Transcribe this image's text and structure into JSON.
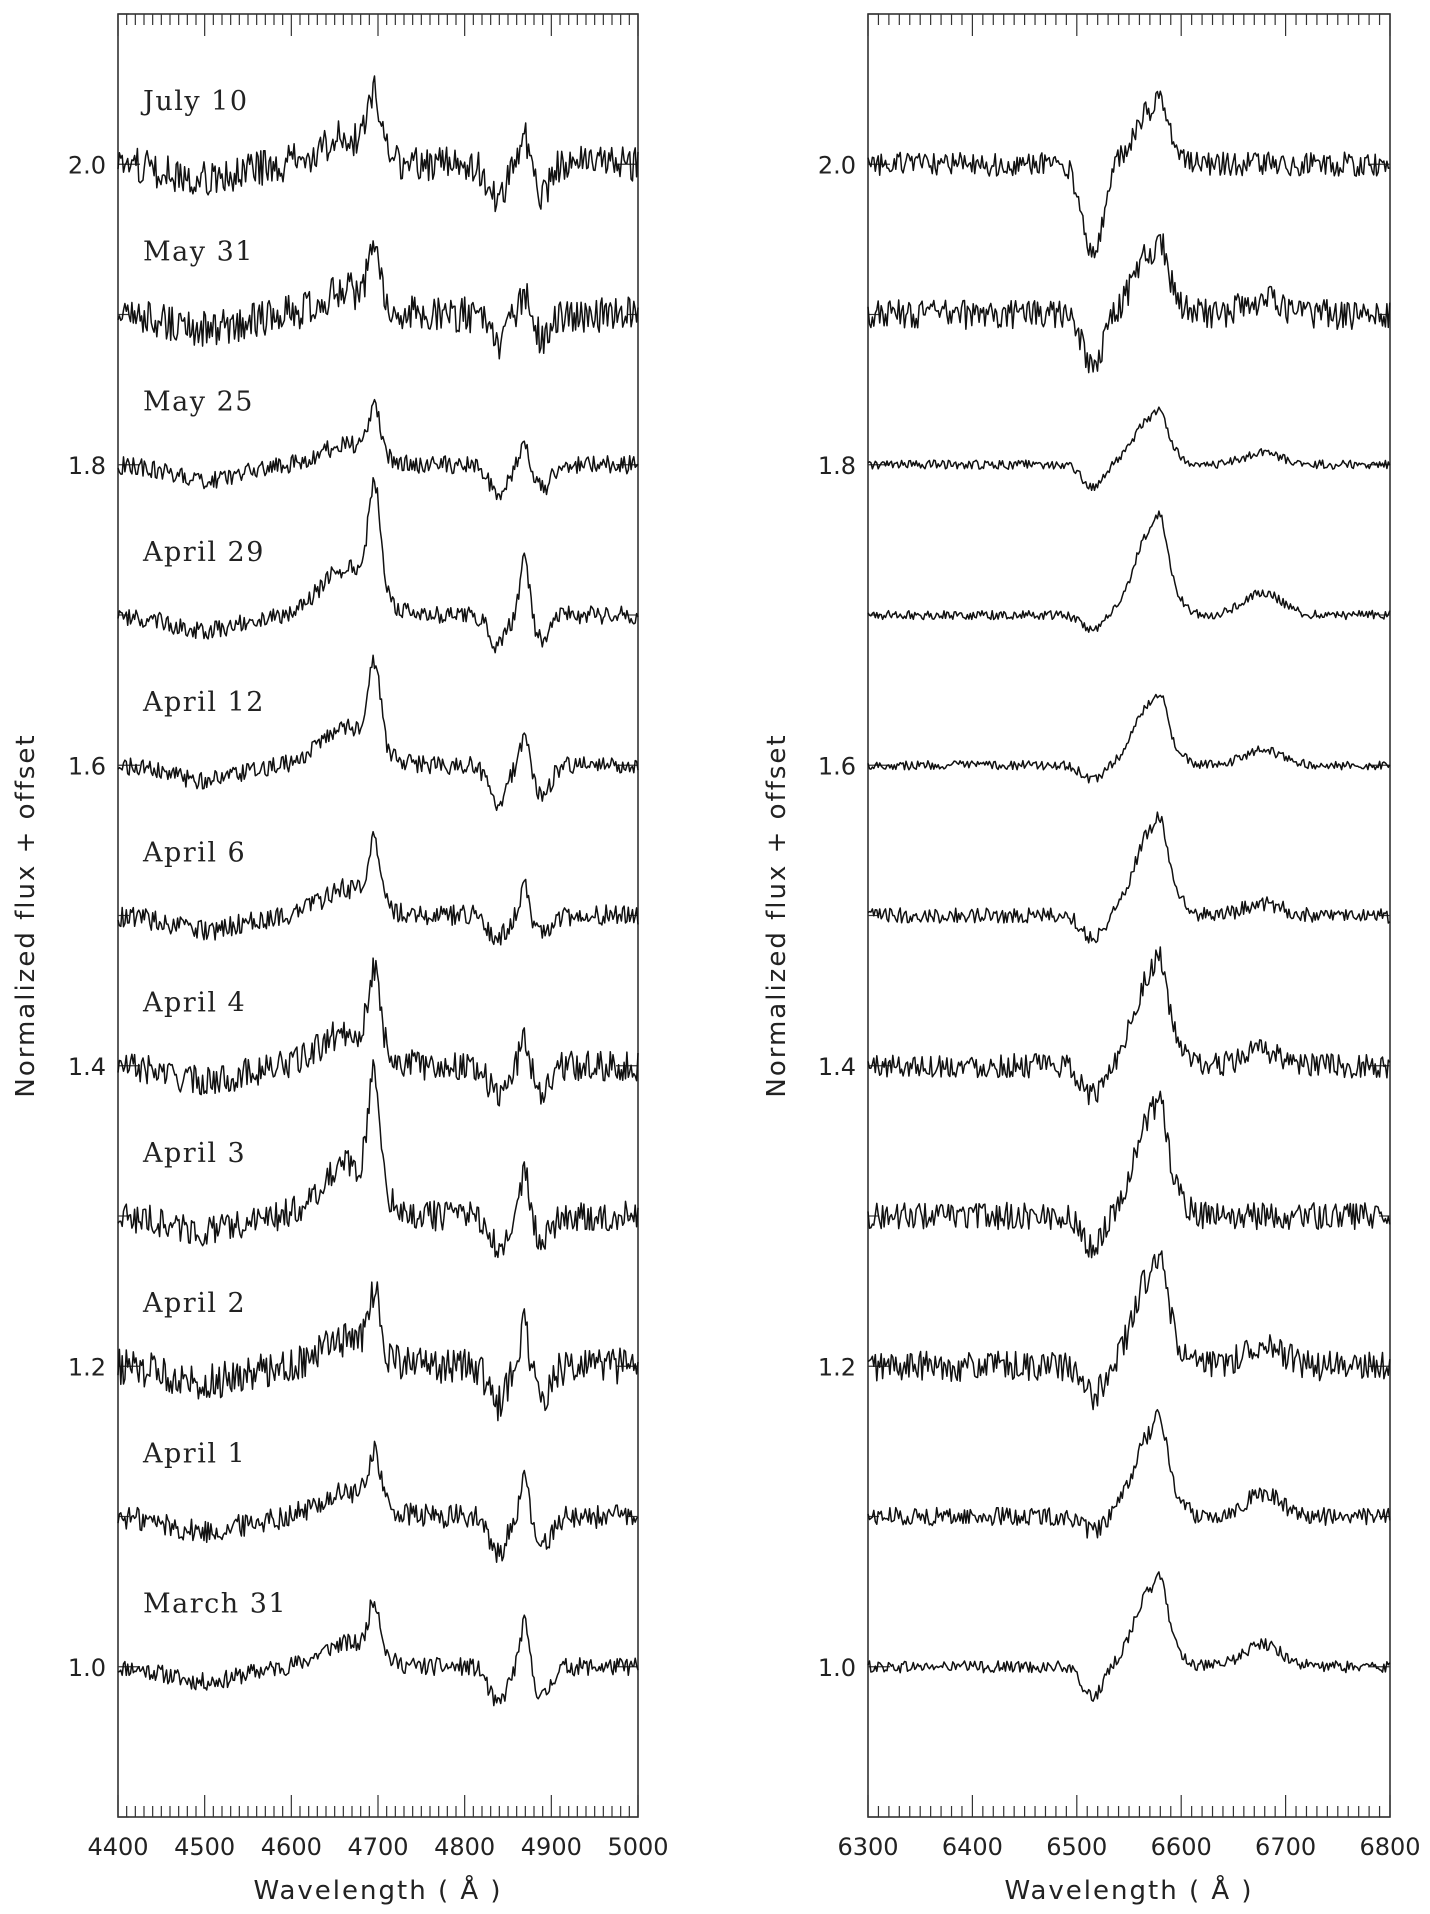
{
  "chart_data": [
    {
      "type": "line",
      "panel": "left",
      "xlabel": "Wavelength ( Å )",
      "ylabel": "Normalized flux + offset",
      "xlim": [
        4400,
        5000
      ],
      "ylim": [
        0.9,
        2.1
      ],
      "xticks": [
        "4400",
        "4500",
        "4600",
        "4700",
        "4800",
        "4900",
        "5000"
      ],
      "yticks": [
        "1.0",
        "1.2",
        "1.4",
        "1.6",
        "1.8",
        "2.0"
      ],
      "grid": false,
      "features": [
        {
          "x": 4686,
          "width": 18
        },
        {
          "x": 4861,
          "width": 10
        }
      ],
      "series": [
        {
          "name": "March 31",
          "offset": 1.0,
          "peak": 0.035,
          "hbeta": 0.03,
          "abs": 0.025,
          "noise": 0.006
        },
        {
          "name": "April 1",
          "offset": 1.1,
          "peak": 0.035,
          "hbeta": 0.025,
          "abs": 0.025,
          "noise": 0.008
        },
        {
          "name": "April 2",
          "offset": 1.2,
          "peak": 0.04,
          "hbeta": 0.03,
          "abs": 0.025,
          "noise": 0.012
        },
        {
          "name": "April 3",
          "offset": 1.3,
          "peak": 0.075,
          "hbeta": 0.03,
          "abs": 0.02,
          "noise": 0.01
        },
        {
          "name": "April 4",
          "offset": 1.4,
          "peak": 0.05,
          "hbeta": 0.02,
          "abs": 0.02,
          "noise": 0.01
        },
        {
          "name": "April 6",
          "offset": 1.5,
          "peak": 0.04,
          "hbeta": 0.02,
          "abs": 0.015,
          "noise": 0.007
        },
        {
          "name": "April 12",
          "offset": 1.6,
          "peak": 0.055,
          "hbeta": 0.02,
          "abs": 0.025,
          "noise": 0.006
        },
        {
          "name": "April 29",
          "offset": 1.7,
          "peak": 0.07,
          "hbeta": 0.04,
          "abs": 0.02,
          "noise": 0.006
        },
        {
          "name": "May 25",
          "offset": 1.8,
          "peak": 0.03,
          "hbeta": 0.015,
          "abs": 0.02,
          "noise": 0.006
        },
        {
          "name": "May 31",
          "offset": 1.9,
          "peak": 0.035,
          "hbeta": 0.015,
          "abs": 0.02,
          "noise": 0.012
        },
        {
          "name": "July 10",
          "offset": 2.0,
          "peak": 0.04,
          "hbeta": 0.02,
          "abs": 0.025,
          "noise": 0.012
        }
      ]
    },
    {
      "type": "line",
      "panel": "right",
      "xlabel": "Wavelength ( Å )",
      "ylabel": "Normalized flux + offset",
      "xlim": [
        6300,
        6800
      ],
      "ylim": [
        0.9,
        2.1
      ],
      "xticks": [
        "6300",
        "6400",
        "6500",
        "6600",
        "6700",
        "6800"
      ],
      "yticks": [
        "1.0",
        "1.2",
        "1.4",
        "1.6",
        "1.8",
        "2.0"
      ],
      "grid": false,
      "features": [
        {
          "x": 6563,
          "width": 22
        },
        {
          "x": 6678,
          "width": 20
        }
      ],
      "series": [
        {
          "name": "March 31",
          "offset": 1.0,
          "peak": 0.05,
          "abs": 0.02,
          "heI": 0.015,
          "noise": 0.004
        },
        {
          "name": "April 1",
          "offset": 1.1,
          "peak": 0.055,
          "abs": 0.01,
          "heI": 0.015,
          "noise": 0.006
        },
        {
          "name": "April 2",
          "offset": 1.2,
          "peak": 0.06,
          "abs": 0.02,
          "heI": 0.015,
          "noise": 0.01
        },
        {
          "name": "April 3",
          "offset": 1.3,
          "peak": 0.065,
          "abs": 0.02,
          "heI": 0.0,
          "noise": 0.009
        },
        {
          "name": "April 4",
          "offset": 1.4,
          "peak": 0.06,
          "abs": 0.02,
          "heI": 0.01,
          "noise": 0.008
        },
        {
          "name": "April 6",
          "offset": 1.5,
          "peak": 0.055,
          "abs": 0.015,
          "heI": 0.008,
          "noise": 0.005
        },
        {
          "name": "April 12",
          "offset": 1.6,
          "peak": 0.04,
          "abs": 0.01,
          "heI": 0.01,
          "noise": 0.003
        },
        {
          "name": "April 29",
          "offset": 1.7,
          "peak": 0.055,
          "abs": 0.01,
          "heI": 0.015,
          "noise": 0.003
        },
        {
          "name": "May 25",
          "offset": 1.8,
          "peak": 0.03,
          "abs": 0.015,
          "heI": 0.008,
          "noise": 0.003
        },
        {
          "name": "May 31",
          "offset": 1.9,
          "peak": 0.04,
          "abs": 0.035,
          "heI": 0.01,
          "noise": 0.01
        },
        {
          "name": "July 10",
          "offset": 2.0,
          "peak": 0.035,
          "abs": 0.06,
          "heI": 0.0,
          "noise": 0.008
        }
      ]
    }
  ]
}
